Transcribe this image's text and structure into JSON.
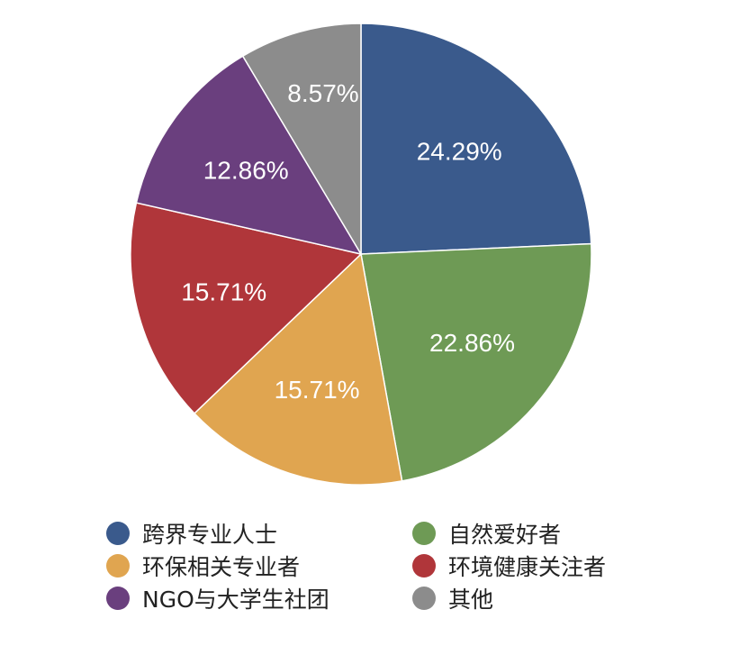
{
  "chart_data": {
    "type": "pie",
    "title": "",
    "slices": [
      {
        "label": "跨界专业人士",
        "value": 24.29,
        "value_label": "24.29%",
        "color": "#3a5a8c"
      },
      {
        "label": "自然爱好者",
        "value": 22.86,
        "value_label": "22.86%",
        "color": "#6e9a55"
      },
      {
        "label": "环保相关专业者",
        "value": 15.71,
        "value_label": "15.71%",
        "color": "#e0a550"
      },
      {
        "label": "环境健康关注者",
        "value": 15.71,
        "value_label": "15.71%",
        "color": "#b0363a"
      },
      {
        "label": "NGO与大学生社团",
        "value": 12.86,
        "value_label": "12.86%",
        "color": "#6a3f7e"
      },
      {
        "label": "其他",
        "value": 8.57,
        "value_label": "8.57%",
        "color": "#8c8c8c"
      }
    ],
    "start": "top",
    "direction": "clockwise",
    "legend_position": "bottom",
    "legend_order": [
      0,
      1,
      2,
      3,
      4,
      5
    ]
  }
}
